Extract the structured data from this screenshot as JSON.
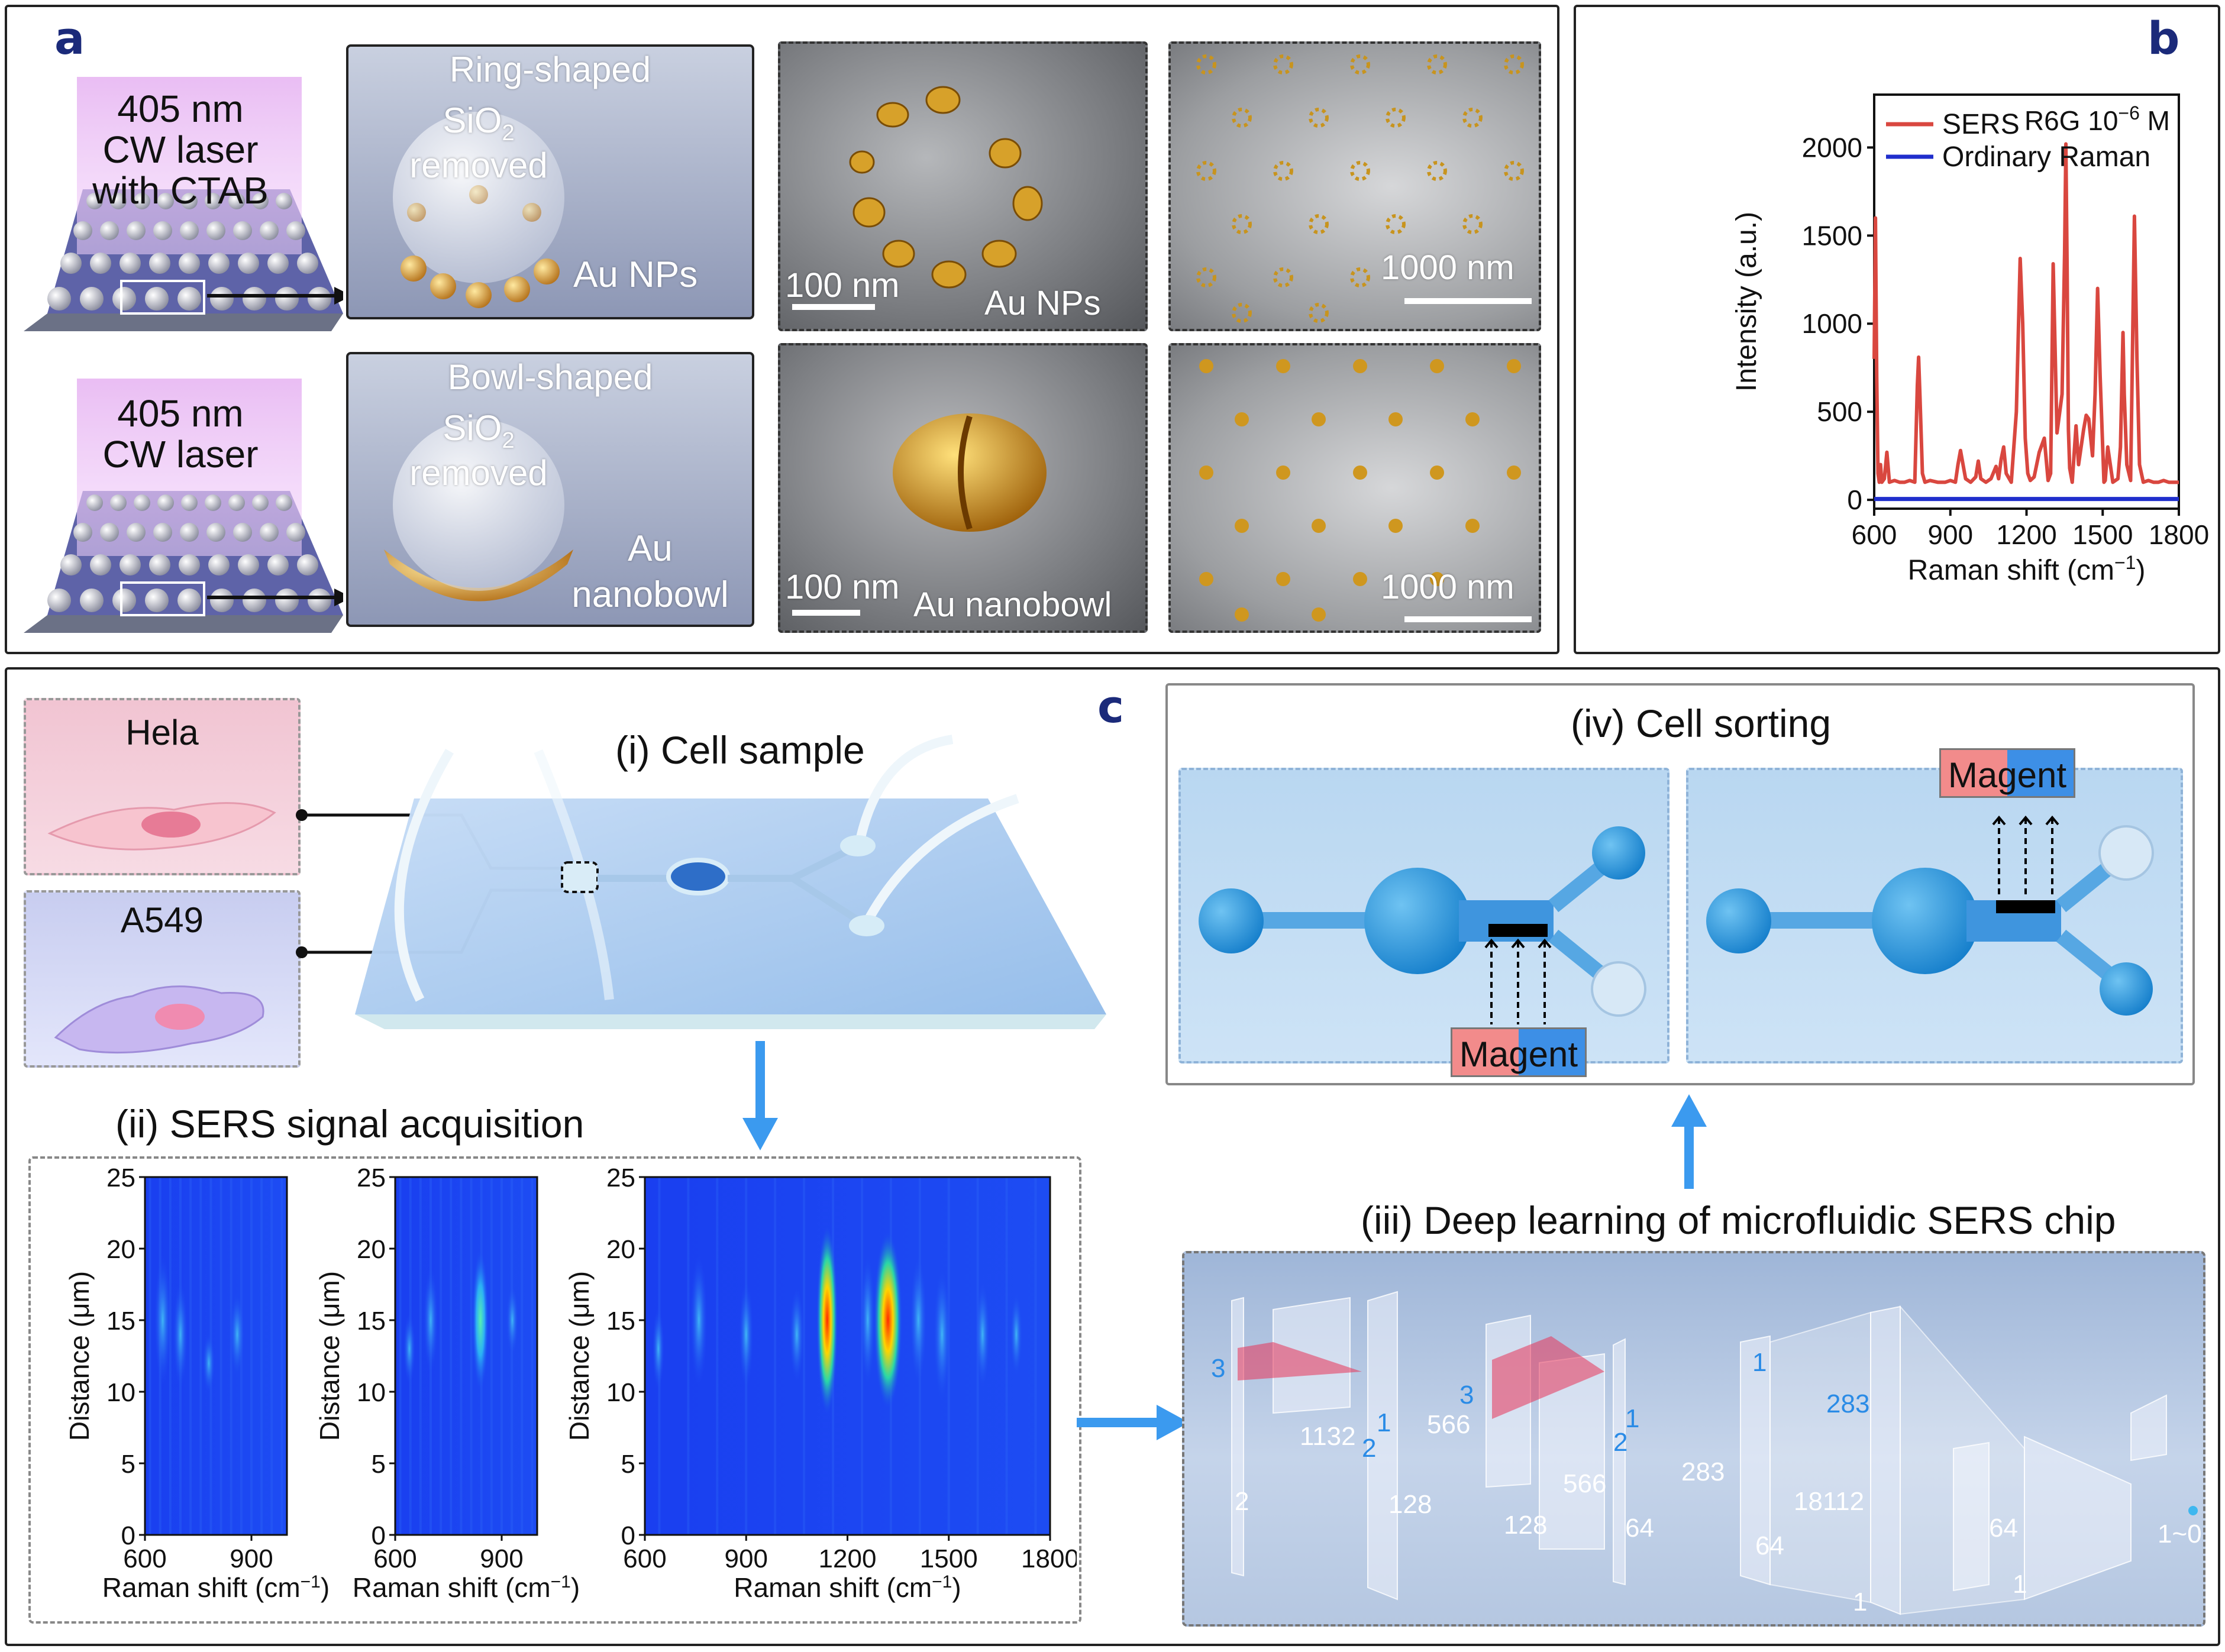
{
  "panel_a": {
    "letter": "a",
    "laser_ring": "405 nm\nCW laser\nwith CTAB",
    "laser_bowl": "405 nm\nCW laser",
    "ring_title": "Ring-shaped",
    "bowl_title": "Bowl-shaped",
    "sio2_line1": "SiO",
    "sio2_sub": "2",
    "sio2_line2": "removed",
    "au_nps": "Au NPs",
    "au_nanobowl": "Au\nnanobowl",
    "sem_ring_scale": "100 nm",
    "sem_ring_label": "Au NPs",
    "sem_ring_array_scale": "1000 nm",
    "sem_bowl_scale": "100 nm",
    "sem_bowl_label": "Au nanobowl",
    "sem_bowl_array_scale": "1000 nm"
  },
  "panel_b": {
    "letter": "b",
    "annotation": "R6G 10",
    "annotation_sup": "−6",
    "annotation_unit": " M",
    "xlabel": "Raman shift (cm",
    "xlabel_sup": "−1",
    "xlabel_end": ")",
    "ylabel": "Intensity (a.u.)",
    "legend": [
      "SERS",
      "Ordinary Raman"
    ],
    "colors": {
      "sers": "#d9473f",
      "raman": "#1f2ecc"
    }
  },
  "chart_data": [
    {
      "type": "line",
      "x": [
        600,
        605,
        610,
        615,
        620,
        625,
        630,
        640,
        650,
        660,
        680,
        700,
        720,
        740,
        760,
        770,
        775,
        780,
        790,
        800,
        820,
        850,
        880,
        900,
        920,
        930,
        940,
        950,
        960,
        980,
        1000,
        1010,
        1020,
        1040,
        1060,
        1080,
        1090,
        1100,
        1110,
        1120,
        1140,
        1160,
        1175,
        1185,
        1195,
        1205,
        1215,
        1230,
        1250,
        1270,
        1285,
        1295,
        1305,
        1320,
        1340,
        1350,
        1355,
        1360,
        1365,
        1370,
        1380,
        1395,
        1405,
        1415,
        1425,
        1435,
        1445,
        1460,
        1470,
        1480,
        1490,
        1500,
        1505,
        1510,
        1520,
        1540,
        1560,
        1570,
        1580,
        1585,
        1595,
        1610,
        1625,
        1635,
        1645,
        1660,
        1680,
        1700,
        1720,
        1740,
        1760,
        1780,
        1800
      ],
      "series": [
        {
          "name": "SERS",
          "values": [
            800,
            1600,
            700,
            150,
            100,
            200,
            100,
            120,
            270,
            100,
            110,
            100,
            100,
            110,
            100,
            650,
            810,
            600,
            150,
            100,
            110,
            100,
            100,
            110,
            100,
            200,
            280,
            200,
            120,
            100,
            130,
            220,
            120,
            100,
            120,
            190,
            120,
            230,
            300,
            150,
            100,
            500,
            1370,
            1000,
            350,
            150,
            110,
            130,
            270,
            350,
            110,
            150,
            1340,
            380,
            600,
            1400,
            2020,
            1300,
            400,
            180,
            100,
            420,
            200,
            300,
            400,
            480,
            460,
            250,
            600,
            1200,
            700,
            300,
            100,
            110,
            300,
            100,
            120,
            300,
            950,
            600,
            200,
            110,
            1610,
            800,
            200,
            100,
            110,
            100,
            100,
            110,
            100,
            100,
            100
          ]
        },
        {
          "name": "Ordinary Raman",
          "values": [
            5,
            5,
            5,
            5,
            5,
            5,
            5,
            5,
            5,
            5,
            5,
            5,
            5,
            5,
            5,
            5,
            5,
            5,
            5,
            5,
            5,
            5,
            5,
            5,
            5,
            5,
            5,
            5,
            5,
            5,
            5,
            5,
            5,
            5,
            5,
            5,
            5,
            5,
            5,
            5,
            5,
            5,
            5,
            5,
            5,
            5,
            5,
            5,
            5,
            5,
            5,
            5,
            5,
            5,
            5,
            5,
            5,
            5,
            5,
            5,
            5,
            5,
            5,
            5,
            5,
            5,
            5,
            5,
            5,
            5,
            5,
            5,
            5,
            5,
            5,
            5,
            5,
            5,
            5,
            5,
            5,
            5,
            5,
            5,
            5,
            5,
            5,
            5,
            5,
            5,
            5,
            5,
            5
          ]
        }
      ],
      "xlim": [
        600,
        1800
      ],
      "ylim": [
        -50,
        2300
      ],
      "xticks": [
        600,
        900,
        1200,
        1500,
        1800
      ],
      "yticks": [
        0,
        500,
        1000,
        1500,
        2000
      ],
      "legend_position": "top-left"
    },
    {
      "type": "heatmap",
      "xlim": [
        600,
        1000
      ],
      "ylim": [
        0,
        25
      ],
      "xticks": [
        600,
        900
      ],
      "yticks": [
        0,
        5,
        10,
        15,
        20,
        25
      ]
    },
    {
      "type": "heatmap",
      "xlim": [
        600,
        1000
      ],
      "ylim": [
        0,
        25
      ],
      "xticks": [
        600,
        900
      ],
      "yticks": [
        0,
        5,
        10,
        15,
        20,
        25
      ]
    },
    {
      "type": "heatmap",
      "xlim": [
        600,
        1800
      ],
      "ylim": [
        0,
        25
      ],
      "xticks": [
        600,
        900,
        1200,
        1500,
        1800
      ],
      "yticks": [
        0,
        5,
        10,
        15,
        20,
        25
      ]
    }
  ],
  "panel_c": {
    "letter": "c",
    "cell_hela": "Hela",
    "cell_a549": "A549",
    "step_i": "(i) Cell sample",
    "step_ii": "(ii) SERS signal acquisition",
    "step_iii": "(iii) Deep learning of microfluidic SERS chip",
    "step_iv": "(iv) Cell sorting",
    "magent": "Magent",
    "heatmap_ylabel": "Distance (μm)",
    "heatmap_xlabel": "Raman shift (cm",
    "heatmap_xlabel_sup": "−1",
    "heatmap_xlabel_end": ")",
    "cnn_labels": [
      "3",
      "1132",
      "1",
      "2",
      "128",
      "2",
      "3",
      "566",
      "128",
      "566",
      "1",
      "2",
      "64",
      "283",
      "1",
      "64",
      "18112",
      "283",
      "1",
      "64",
      "1",
      "1~0"
    ],
    "colors": {
      "accent_blue": "#2a8be6",
      "magent_red": "#f28b8b",
      "magent_blue": "#3d8fe6"
    }
  }
}
